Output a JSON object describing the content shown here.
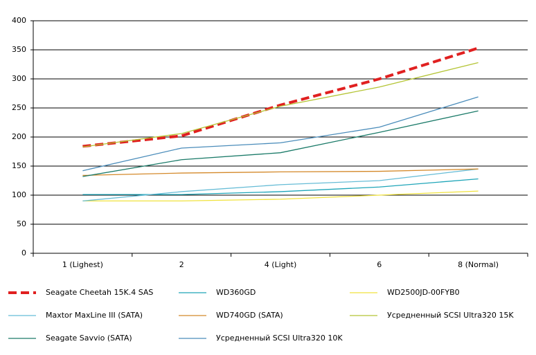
{
  "chart_data": {
    "type": "line",
    "categories": [
      "1 (Lighest)",
      "2",
      "4 (Light)",
      "6",
      "8 (Normal)"
    ],
    "ylim": [
      0,
      400
    ],
    "yticks": [
      0,
      50,
      100,
      150,
      200,
      250,
      300,
      350,
      400
    ],
    "grid": true,
    "series": [
      {
        "name": "Seagate Cheetah 15K.4 SAS",
        "color": "#e02020",
        "dashed": true,
        "values": [
          184,
          202,
          255,
          300,
          353
        ]
      },
      {
        "name": "WD360GD",
        "color": "#1ea5b8",
        "values": [
          101,
          101,
          106,
          114,
          128
        ]
      },
      {
        "name": "WD2500JD-00FYB0",
        "color": "#f0e23c",
        "values": [
          90,
          90,
          93,
          100,
          107
        ]
      },
      {
        "name": "Maxtor MaxLine III (SATA)",
        "color": "#66bcd6",
        "values": [
          90,
          106,
          118,
          125,
          145
        ]
      },
      {
        "name": "WD740GD (SATA)",
        "color": "#d4892a",
        "values": [
          134,
          138,
          140,
          141,
          145
        ]
      },
      {
        "name": "Усредненный SCSI Ultra320 15K",
        "color": "#b4c434",
        "values": [
          183,
          206,
          253,
          286,
          328
        ]
      },
      {
        "name": "Seagate Savvio (SATA)",
        "color": "#1a7a68",
        "values": [
          132,
          161,
          173,
          208,
          245
        ]
      },
      {
        "name": "Усредненный SCSI Ultra320 10K",
        "color": "#4a8cba",
        "values": [
          142,
          181,
          190,
          217,
          269
        ]
      }
    ]
  }
}
